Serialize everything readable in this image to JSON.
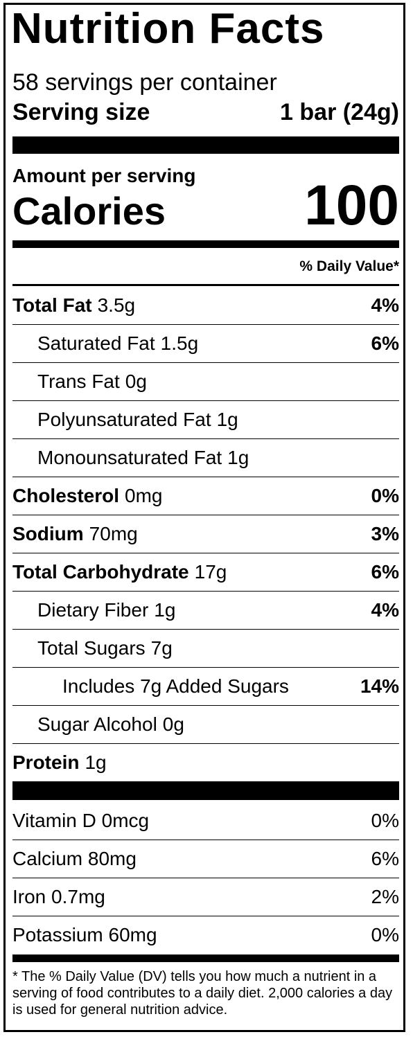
{
  "header": {
    "title": "Nutrition Facts",
    "servings": "58 servings per container",
    "serving_size_label": "Serving size",
    "serving_size_value": "1 bar (24g)"
  },
  "calories": {
    "amount_label": "Amount per serving",
    "label": "Calories",
    "value": "100"
  },
  "daily_value_header": "% Daily Value*",
  "nutrients": [
    {
      "name": "Total Fat",
      "amount": "3.5g",
      "dv": "4%",
      "bold": true,
      "indent": 0
    },
    {
      "name": "Saturated Fat",
      "amount": "1.5g",
      "dv": "6%",
      "bold": false,
      "indent": 1
    },
    {
      "name": "Trans Fat",
      "amount": "0g",
      "bold": false,
      "indent": 1
    },
    {
      "name": "Polyunsaturated Fat",
      "amount": "1g",
      "bold": false,
      "indent": 1
    },
    {
      "name": "Monounsaturated Fat",
      "amount": "1g",
      "bold": false,
      "indent": 1
    },
    {
      "name": "Cholesterol",
      "amount": "0mg",
      "dv": "0%",
      "bold": true,
      "indent": 0
    },
    {
      "name": "Sodium",
      "amount": "70mg",
      "dv": "3%",
      "bold": true,
      "indent": 0
    },
    {
      "name": "Total Carbohydrate",
      "amount": "17g",
      "dv": "6%",
      "bold": true,
      "indent": 0
    },
    {
      "name": "Dietary Fiber",
      "amount": "1g",
      "dv": "4%",
      "bold": false,
      "indent": 1
    },
    {
      "name": "Total Sugars",
      "amount": "7g",
      "bold": false,
      "indent": 1
    },
    {
      "name": "Includes 7g Added Sugars",
      "dv": "14%",
      "bold": false,
      "indent": 2
    },
    {
      "name": "Sugar Alcohol",
      "amount": "0g",
      "bold": false,
      "indent": 1
    },
    {
      "name": "Protein",
      "amount": "1g",
      "bold": true,
      "indent": 0
    }
  ],
  "vitamins": [
    {
      "name": "Vitamin D 0mcg",
      "dv": "0%"
    },
    {
      "name": "Calcium 80mg",
      "dv": "6%"
    },
    {
      "name": "Iron 0.7mg",
      "dv": "2%"
    },
    {
      "name": "Potassium 60mg",
      "dv": "0%"
    }
  ],
  "footnote": "* The % Daily Value (DV) tells you how much a nutrient in a serving of food contributes to a daily diet. 2,000 calories a day is used for general nutrition advice."
}
